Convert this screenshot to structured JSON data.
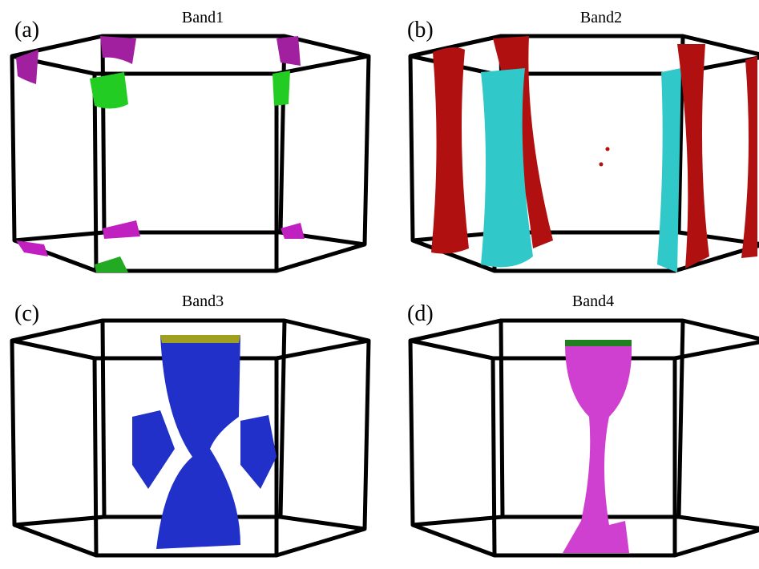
{
  "panels": [
    {
      "label": "(a)",
      "title": "Band1"
    },
    {
      "label": "(b)",
      "title": "Band2"
    },
    {
      "label": "(c)",
      "title": "Band3"
    },
    {
      "label": "(d)",
      "title": "Band4"
    }
  ]
}
